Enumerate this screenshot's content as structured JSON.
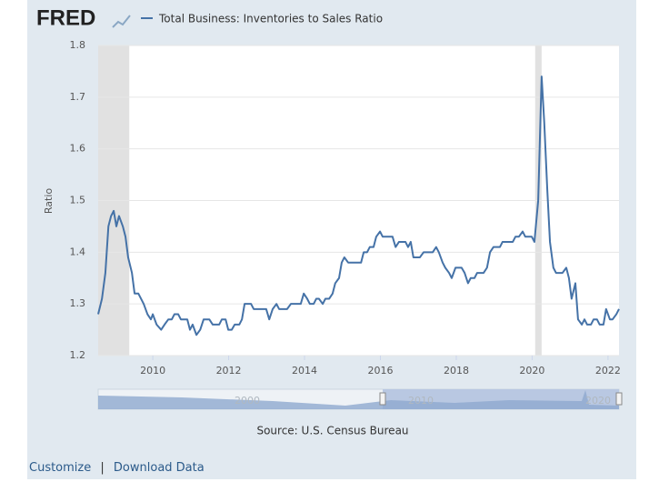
{
  "chart_data": {
    "type": "line",
    "logo": "FRED",
    "ylabel": "Ratio",
    "source": "Source: U.S. Census Bureau",
    "links": [
      "Customize",
      "|",
      "Download Data"
    ],
    "navigator_labels": [
      "2000",
      "2010",
      "2020"
    ],
    "xlim": [
      2008.56,
      2022.29
    ],
    "xticks": [
      2010,
      2012,
      2014,
      2016,
      2018,
      2020,
      2022
    ],
    "ylim": [
      1.2,
      1.8
    ],
    "yticks": [
      1.2,
      1.3,
      1.4,
      1.5,
      1.6,
      1.7,
      1.8
    ],
    "grid": true,
    "recessions": [
      [
        2008.56,
        2009.38
      ],
      [
        2020.08,
        2020.25
      ]
    ],
    "x": [
      2008.56,
      2008.66,
      2008.75,
      2008.83,
      2008.9,
      2008.97,
      2009.04,
      2009.11,
      2009.21,
      2009.28,
      2009.35,
      2009.45,
      2009.52,
      2009.62,
      2009.76,
      2009.86,
      2009.95,
      2010.0,
      2010.1,
      2010.22,
      2010.31,
      2010.41,
      2010.5,
      2010.57,
      2010.67,
      2010.74,
      2010.91,
      2010.98,
      2011.05,
      2011.15,
      2011.25,
      2011.34,
      2011.49,
      2011.58,
      2011.75,
      2011.82,
      2011.92,
      2011.99,
      2012.08,
      2012.16,
      2012.28,
      2012.35,
      2012.42,
      2012.59,
      2012.66,
      2012.99,
      2013.07,
      2013.16,
      2013.26,
      2013.33,
      2013.54,
      2013.64,
      2013.9,
      2013.98,
      2014.07,
      2014.14,
      2014.24,
      2014.31,
      2014.38,
      2014.48,
      2014.55,
      2014.65,
      2014.74,
      2014.81,
      2014.91,
      2014.98,
      2015.05,
      2015.15,
      2015.49,
      2015.56,
      2015.65,
      2015.72,
      2015.82,
      2015.89,
      2015.99,
      2016.06,
      2016.32,
      2016.4,
      2016.49,
      2016.66,
      2016.73,
      2016.8,
      2016.87,
      2017.04,
      2017.14,
      2017.38,
      2017.47,
      2017.54,
      2017.64,
      2017.71,
      2017.81,
      2017.88,
      2017.98,
      2018.14,
      2018.22,
      2018.31,
      2018.38,
      2018.48,
      2018.55,
      2018.72,
      2018.81,
      2018.89,
      2018.98,
      2019.15,
      2019.22,
      2019.49,
      2019.56,
      2019.65,
      2019.75,
      2019.82,
      2019.99,
      2020.06,
      2020.16,
      2020.25,
      2020.32,
      2020.4,
      2020.47,
      2020.56,
      2020.63,
      2020.8,
      2020.9,
      2020.97,
      2021.04,
      2021.14,
      2021.21,
      2021.31,
      2021.38,
      2021.45,
      2021.55,
      2021.62,
      2021.71,
      2021.78,
      2021.88,
      2021.95,
      2022.05,
      2022.12,
      2022.22,
      2022.29
    ],
    "series": [
      {
        "name": "Total Business: Inventories to Sales Ratio",
        "color": "#4572a7",
        "values": [
          1.28,
          1.31,
          1.36,
          1.45,
          1.47,
          1.48,
          1.45,
          1.47,
          1.45,
          1.43,
          1.39,
          1.36,
          1.32,
          1.32,
          1.3,
          1.28,
          1.27,
          1.28,
          1.26,
          1.25,
          1.26,
          1.27,
          1.27,
          1.28,
          1.28,
          1.27,
          1.27,
          1.25,
          1.26,
          1.24,
          1.25,
          1.27,
          1.27,
          1.26,
          1.26,
          1.27,
          1.27,
          1.25,
          1.25,
          1.26,
          1.26,
          1.27,
          1.3,
          1.3,
          1.29,
          1.29,
          1.27,
          1.29,
          1.3,
          1.29,
          1.29,
          1.3,
          1.3,
          1.32,
          1.31,
          1.3,
          1.3,
          1.31,
          1.31,
          1.3,
          1.31,
          1.31,
          1.32,
          1.34,
          1.35,
          1.38,
          1.39,
          1.38,
          1.38,
          1.4,
          1.4,
          1.41,
          1.41,
          1.43,
          1.44,
          1.43,
          1.43,
          1.41,
          1.42,
          1.42,
          1.41,
          1.42,
          1.39,
          1.39,
          1.4,
          1.4,
          1.41,
          1.4,
          1.38,
          1.37,
          1.36,
          1.35,
          1.37,
          1.37,
          1.36,
          1.34,
          1.35,
          1.35,
          1.36,
          1.36,
          1.37,
          1.4,
          1.41,
          1.41,
          1.42,
          1.42,
          1.43,
          1.43,
          1.44,
          1.43,
          1.43,
          1.42,
          1.5,
          1.74,
          1.65,
          1.52,
          1.42,
          1.37,
          1.36,
          1.36,
          1.37,
          1.35,
          1.31,
          1.34,
          1.27,
          1.26,
          1.27,
          1.26,
          1.26,
          1.27,
          1.27,
          1.26,
          1.26,
          1.29,
          1.27,
          1.27,
          1.28,
          1.29
        ]
      }
    ]
  }
}
